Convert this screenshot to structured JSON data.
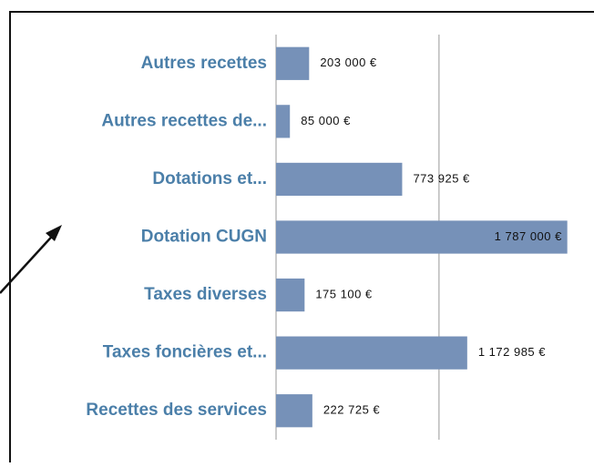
{
  "chart_data": {
    "type": "bar",
    "orientation": "horizontal",
    "categories": [
      "Autres recettes",
      "Autres recettes de...",
      "Dotations et...",
      "Dotation CUGN",
      "Taxes diverses",
      "Taxes foncières et...",
      "Recettes des services"
    ],
    "values": [
      203000,
      85000,
      773925,
      1787000,
      175100,
      1172985,
      222725
    ],
    "value_labels": [
      "203 000 €",
      "85 000 €",
      "773 925 €",
      "1 787 000 €",
      "175 100 €",
      "1 172 985 €",
      "222 725 €"
    ],
    "color": "#7691b8",
    "xlim": [
      0,
      1800000
    ],
    "xticks": [
      0,
      1000000
    ],
    "grid": true
  }
}
